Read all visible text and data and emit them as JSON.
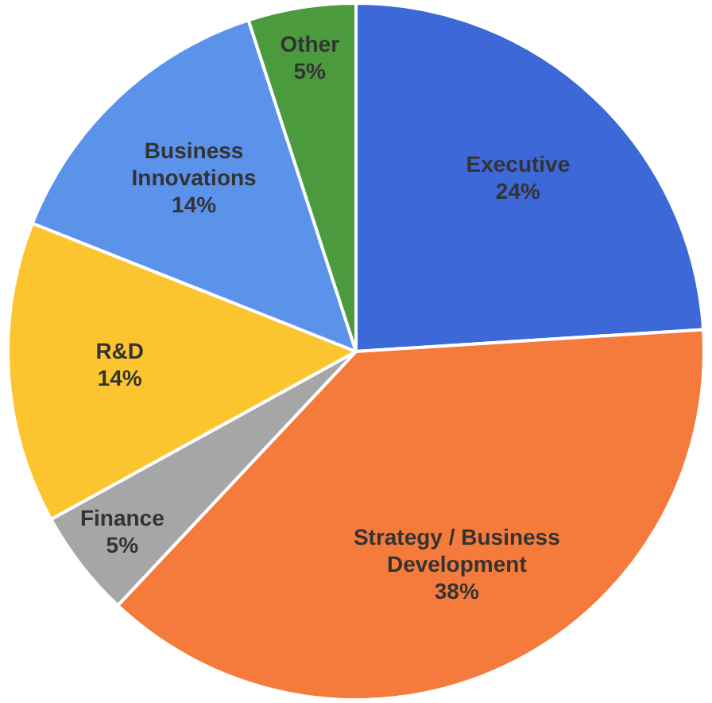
{
  "chart_data": {
    "type": "pie",
    "categories": [
      "Executive",
      "Strategy / Business Development",
      "Finance",
      "R&D",
      "Business Innovations",
      "Other"
    ],
    "values": [
      24,
      38,
      5,
      14,
      14,
      5
    ],
    "value_labels": [
      "24%",
      "38%",
      "5%",
      "14%",
      "14%",
      "5%"
    ],
    "colors": [
      "#3d68d8",
      "#f47b3c",
      "#a6a6a6",
      "#fcc530",
      "#5b93eb",
      "#4b9a3e"
    ],
    "legend": false
  }
}
